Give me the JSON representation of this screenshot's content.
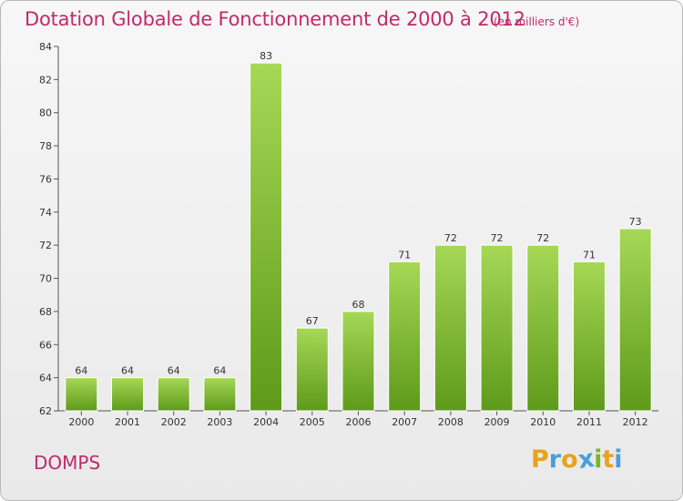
{
  "header": {
    "title": "Dotation Globale de Fonctionnement de 2000 à 2012",
    "unit": "(en milliers d'€)"
  },
  "footer": {
    "commune": "DOMPS",
    "logo": {
      "letters": [
        "P",
        "r",
        "o",
        "x",
        "i",
        "t",
        "i"
      ],
      "colors": [
        "#e8a21c",
        "#4a9ed8",
        "#e8a21c",
        "#4a9ed8",
        "#7bb62a",
        "#e8a21c",
        "#4a9ed8"
      ]
    }
  },
  "colors": {
    "text_accent": "#c02a6a",
    "bar_top": "#a6d856",
    "bar_bottom": "#5e9a1a"
  },
  "chart_data": {
    "type": "bar",
    "categories": [
      "2000",
      "2001",
      "2002",
      "2003",
      "2004",
      "2005",
      "2006",
      "2007",
      "2008",
      "2009",
      "2010",
      "2011",
      "2012"
    ],
    "values": [
      64,
      64,
      64,
      64,
      83,
      67,
      68,
      71,
      72,
      72,
      72,
      71,
      73
    ],
    "data_labels": [
      "64",
      "64",
      "64",
      "64",
      "83",
      "67",
      "68",
      "71",
      "72",
      "72",
      "72",
      "71",
      "73"
    ],
    "title": "Dotation Globale de Fonctionnement de 2000 à 2012",
    "subtitle": "(en milliers d'€)",
    "xlabel": "",
    "ylabel": "",
    "ylim": [
      62,
      84
    ],
    "yticks": [
      "62",
      "64",
      "66",
      "68",
      "70",
      "72",
      "74",
      "76",
      "78",
      "80",
      "82",
      "84"
    ],
    "grid": false,
    "legend": "none"
  }
}
